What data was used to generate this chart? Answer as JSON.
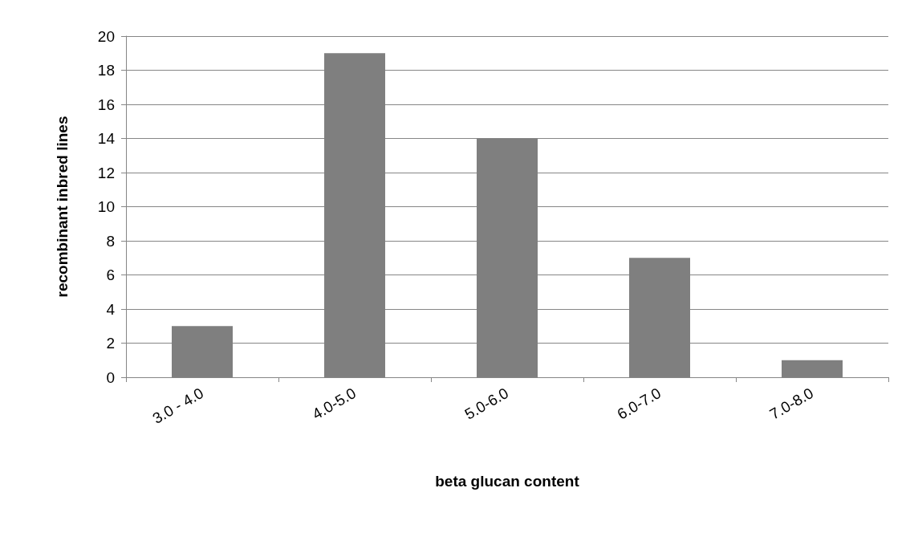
{
  "chart_data": {
    "type": "bar",
    "xlabel": "beta glucan content",
    "ylabel": "recombinant inbred lines",
    "categories": [
      "3.0 - 4.0",
      "4.0-5.0",
      "5.0-6.0",
      "6.0-7.0",
      "7.0-8.0"
    ],
    "values": [
      3,
      19,
      14,
      7,
      1
    ],
    "color": "#7f7f7f",
    "ylim": [
      0,
      20
    ],
    "yticks": [
      0,
      2,
      4,
      6,
      8,
      10,
      12,
      14,
      16,
      18,
      20
    ],
    "grid": "y"
  }
}
